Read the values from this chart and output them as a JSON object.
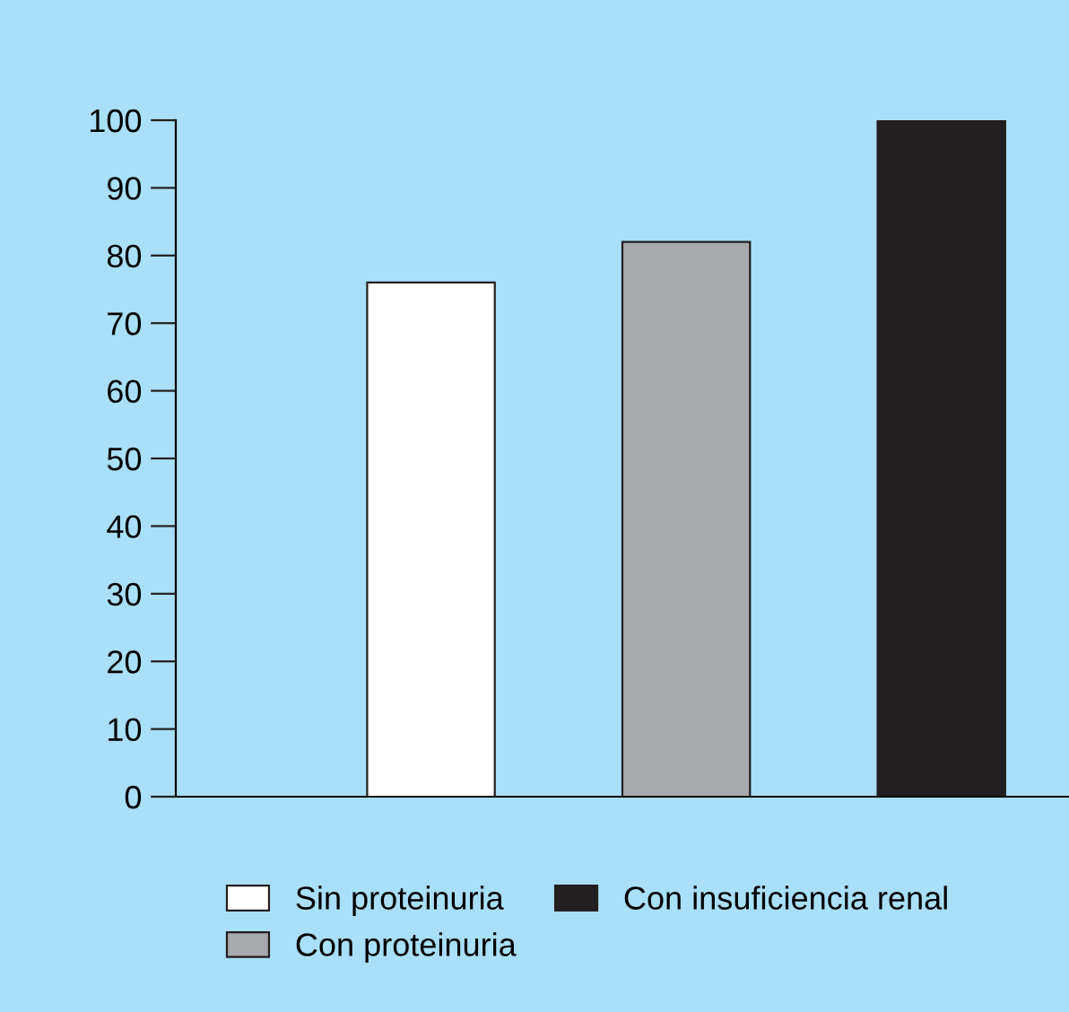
{
  "chart_data": {
    "type": "bar",
    "categories": [
      null,
      null,
      null
    ],
    "series": [
      {
        "name": "Sin proteinuria",
        "color": "#ffffff",
        "values": [
          76,
          null,
          null
        ]
      },
      {
        "name": "Con proteinuria",
        "color": "#a7a9ac",
        "values": [
          null,
          82,
          null
        ]
      },
      {
        "name": "Con insuficiencia renal",
        "color": "#231f20",
        "values": [
          null,
          null,
          100
        ]
      }
    ],
    "ylim": [
      0,
      100
    ],
    "yticks": [
      0,
      10,
      20,
      30,
      40,
      50,
      60,
      70,
      80,
      90,
      100
    ],
    "grid": false,
    "legend": "bottom"
  }
}
